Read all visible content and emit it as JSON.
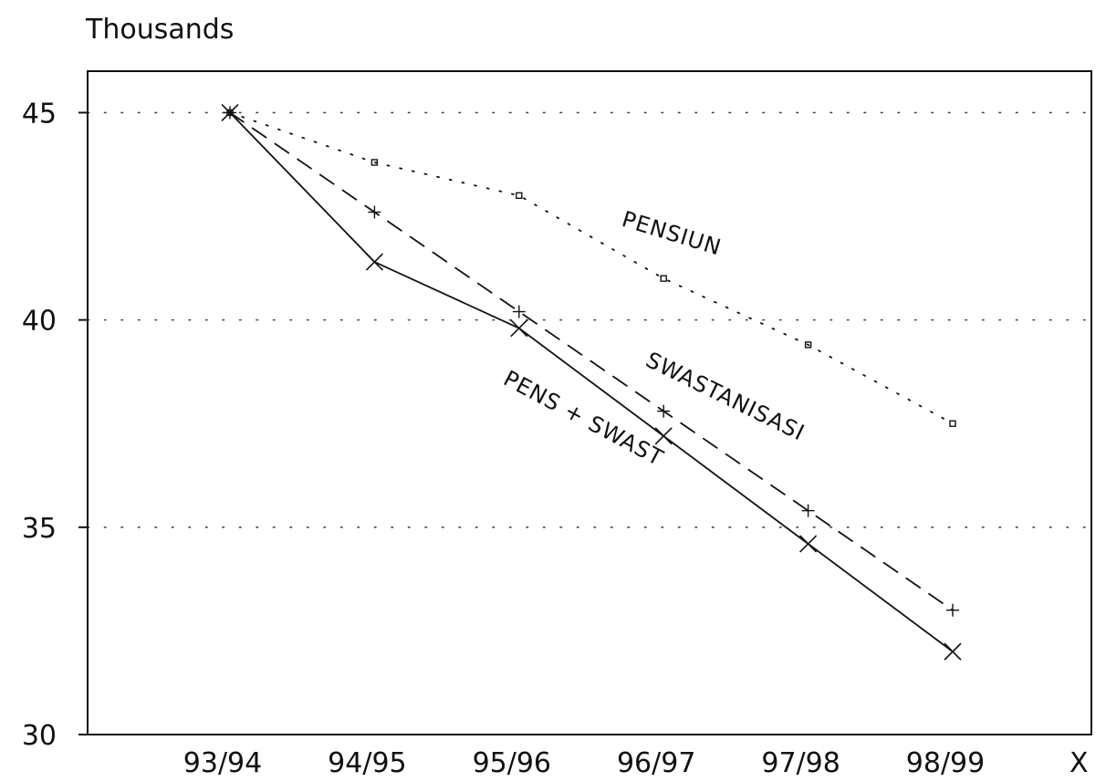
{
  "chart_data": {
    "type": "line",
    "title": "",
    "ylabel": "Thousands",
    "xlabel": "X",
    "categories": [
      "93/94",
      "94/95",
      "95/96",
      "96/97",
      "97/98",
      "98/99"
    ],
    "ylim": [
      30,
      46
    ],
    "yticks": [
      30,
      35,
      40,
      45
    ],
    "grid": "dotted-horizontal",
    "legend": "none",
    "series": [
      {
        "name": "PENSIUN",
        "style": "dotted",
        "marker": "square",
        "values": [
          45.0,
          43.8,
          43.0,
          41.0,
          39.4,
          37.5
        ]
      },
      {
        "name": "SWASTANISASI",
        "style": "dashed",
        "marker": "plus",
        "values": [
          45.0,
          42.6,
          40.2,
          37.8,
          35.4,
          33.0
        ]
      },
      {
        "name": "PENS + SWAST",
        "style": "solid",
        "marker": "x",
        "values": [
          45.0,
          41.4,
          39.8,
          37.2,
          34.6,
          32.0
        ]
      }
    ]
  }
}
